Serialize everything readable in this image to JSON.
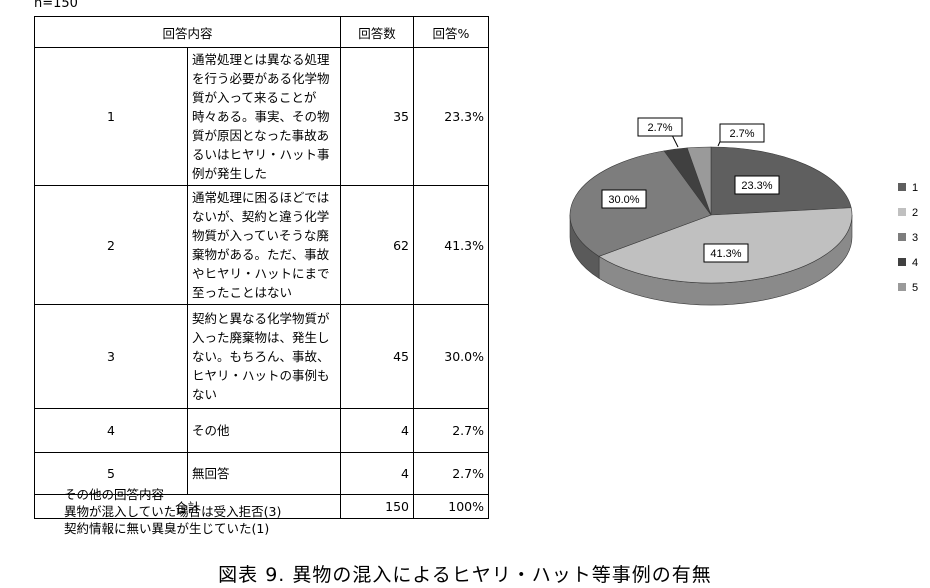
{
  "sample_size": "n=150",
  "table": {
    "headers": {
      "content": "回答内容",
      "count": "回答数",
      "percent": "回答%"
    },
    "rows": [
      {
        "no": "1",
        "content": "通常処理とは異なる処理を行う必要がある化学物質が入って来ることが時々ある。事実、その物質が原因となった事故あるいはヒヤリ・ハット事例が発生した",
        "count": "35",
        "percent": "23.3%"
      },
      {
        "no": "2",
        "content": "通常処理に困るほどではないが、契約と違う化学物質が入っていそうな廃棄物がある。ただ、事故やヒヤリ・ハットにまで至ったことはない",
        "count": "62",
        "percent": "41.3%"
      },
      {
        "no": "3",
        "content": "契約と異なる化学物質が入った廃棄物は、発生しない。もちろん、事故、ヒヤリ・ハットの事例もない",
        "count": "45",
        "percent": "30.0%"
      },
      {
        "no": "4",
        "content": "その他",
        "count": "4",
        "percent": "2.7%"
      },
      {
        "no": "5",
        "content": "無回答",
        "count": "4",
        "percent": "2.7%"
      }
    ],
    "total": {
      "label": "合計",
      "count": "150",
      "percent": "100%"
    }
  },
  "notes": {
    "title": "その他の回答内容",
    "line1": "異物が混入していた場合は受入拒否(3)",
    "line2": "契約情報に無い異臭が生じていた(1)"
  },
  "caption": "図表 9. 異物の混入によるヒヤリ・ハット等事例の有無",
  "chart_data": {
    "type": "pie",
    "style": "3d",
    "categories": [
      "1",
      "2",
      "3",
      "4",
      "5"
    ],
    "values": [
      23.3,
      41.3,
      30.0,
      2.7,
      2.7
    ],
    "data_labels": [
      "23.3%",
      "41.3%",
      "30.0%",
      "2.7%",
      "2.7%"
    ],
    "colors": [
      "#5f5f5f",
      "#c0c0c0",
      "#7d7d7d",
      "#404040",
      "#9a9a9a"
    ],
    "legend_position": "right"
  }
}
